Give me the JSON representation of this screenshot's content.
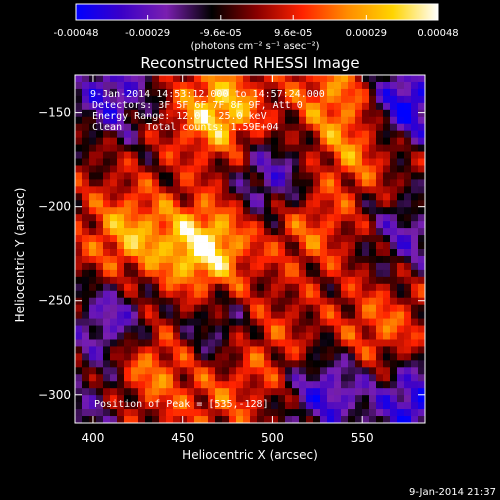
{
  "chart_data": {
    "type": "heatmap",
    "title": "Reconstructed RHESSI Image",
    "xlabel": "Heliocentric X (arcsec)",
    "ylabel": "Heliocentric Y (arcsec)",
    "xlim": [
      390,
      585
    ],
    "ylim": [
      -315,
      -130
    ],
    "x_ticks": [
      400,
      450,
      500,
      550
    ],
    "y_ticks": [
      -150,
      -200,
      -250,
      -300
    ],
    "colorbar": {
      "range": [
        -0.00048,
        0.00048
      ],
      "tick_labels": [
        "-0.00048",
        "-0.00029",
        "-9.6e-05",
        "9.6e-05",
        "0.00029",
        "0.00048"
      ],
      "unit_label": "(photons cm⁻² s⁻¹ asec⁻²)",
      "colormap": [
        "#0000ff",
        "#3a00c8",
        "#7a1fb0",
        "#000000",
        "#8a0000",
        "#ff2200",
        "#ff8c00",
        "#ffd400",
        "#ffffff"
      ]
    },
    "annotations": [
      "9-Jan-2014 14:53:12.000 to 14:57:24.000",
      "Detectors: 3F 5F 6F 7F 8F 9F, Att 0",
      "Energy Range: 12.0 - 25.0 keV",
      "Clean    Total counts: 1.59E+04"
    ],
    "peak_label": "Position of Peak = [535,-128]",
    "peak_position": [
      535,
      -128
    ],
    "hot_spots": [
      {
        "x": 462,
        "y": -222,
        "value": 0.00045
      },
      {
        "x": 470,
        "y": -150,
        "value": 0.00038
      },
      {
        "x": 420,
        "y": -215,
        "value": 0.00028
      },
      {
        "x": 535,
        "y": -140,
        "value": 0.00022
      },
      {
        "x": 545,
        "y": -170,
        "value": 0.0002
      },
      {
        "x": 520,
        "y": -210,
        "value": 0.00018
      },
      {
        "x": 430,
        "y": -285,
        "value": 0.00024
      },
      {
        "x": 495,
        "y": -275,
        "value": 0.00016
      },
      {
        "x": 560,
        "y": -265,
        "value": 0.00018
      },
      {
        "x": 470,
        "y": -300,
        "value": 0.00014
      }
    ],
    "cold_spots": [
      {
        "x": 410,
        "y": -140,
        "value": -0.00035
      },
      {
        "x": 575,
        "y": -145,
        "value": -0.00045
      },
      {
        "x": 500,
        "y": -185,
        "value": -0.0003
      },
      {
        "x": 410,
        "y": -262,
        "value": -0.00032
      },
      {
        "x": 470,
        "y": -268,
        "value": -0.00022
      },
      {
        "x": 575,
        "y": -215,
        "value": -0.00025
      },
      {
        "x": 530,
        "y": -300,
        "value": -0.00035
      },
      {
        "x": 400,
        "y": -305,
        "value": -0.00018
      },
      {
        "x": 580,
        "y": -305,
        "value": -0.00042
      }
    ]
  },
  "footer": {
    "timestamp": "9-Jan-2014 21:37"
  }
}
